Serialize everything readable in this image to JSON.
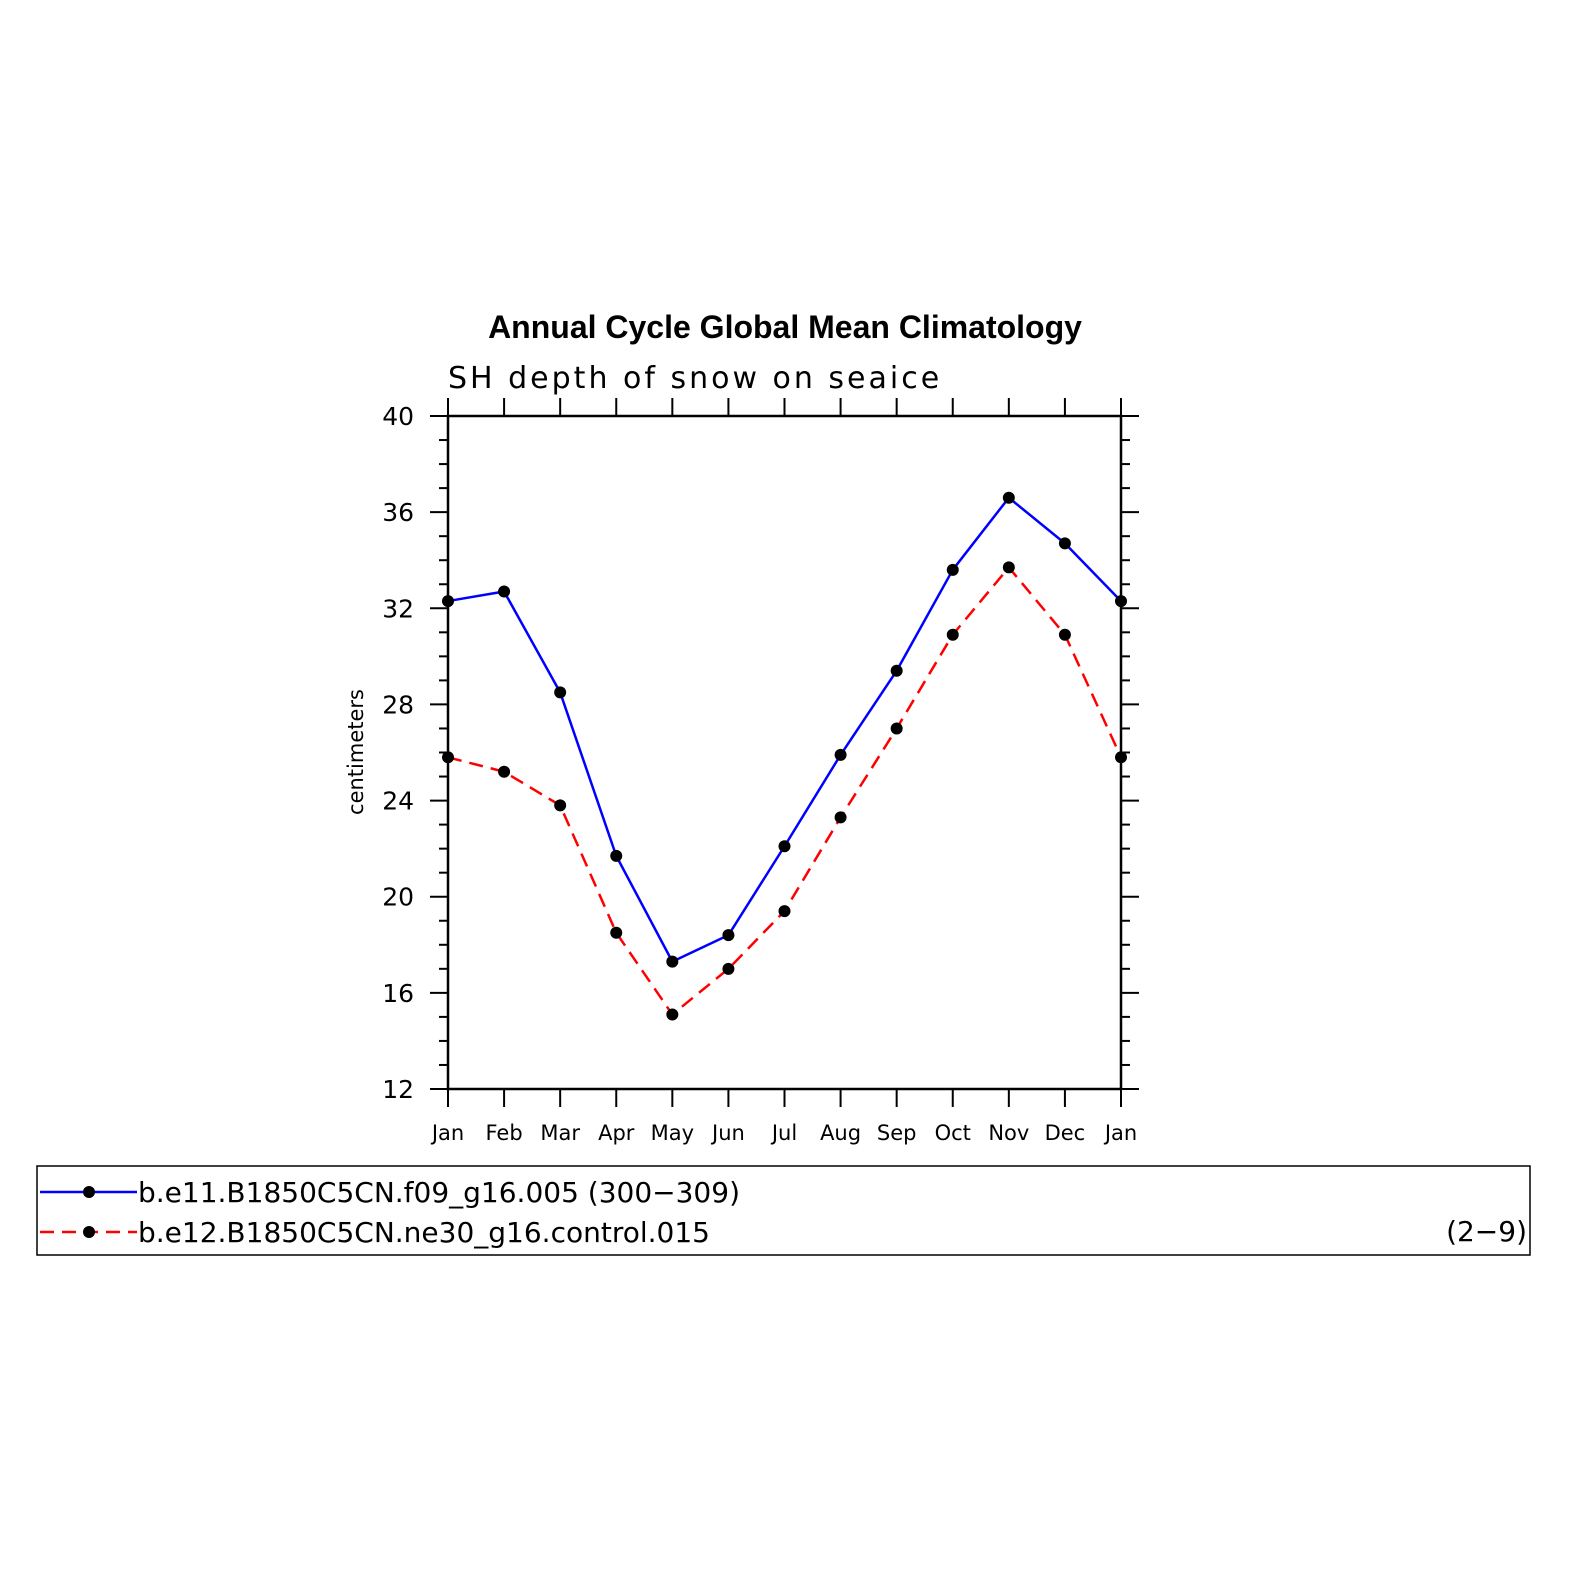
{
  "chart_data": {
    "type": "line",
    "title": "Annual Cycle Global Mean Climatology",
    "subtitle": "SH depth of snow on seaice",
    "ylabel": "centimeters",
    "xlabel": "",
    "categories": [
      "Jan",
      "Feb",
      "Mar",
      "Apr",
      "May",
      "Jun",
      "Jul",
      "Aug",
      "Sep",
      "Oct",
      "Nov",
      "Dec",
      "Jan"
    ],
    "ylim": [
      12,
      40
    ],
    "yticks": [
      12,
      16,
      20,
      24,
      28,
      32,
      36,
      40
    ],
    "series": [
      {
        "name": "b.e11.B1850C5CN.f09_g16.005 (300−309)",
        "color": "#0000ff",
        "dash": "solid",
        "values": [
          32.3,
          32.7,
          28.5,
          21.7,
          17.3,
          18.4,
          22.1,
          25.9,
          29.4,
          33.6,
          36.6,
          34.7,
          32.3
        ]
      },
      {
        "name": "b.e12.B1850C5CN.ne30_g16.control.015",
        "color": "#ff0000",
        "dash": "dashed",
        "values": [
          25.8,
          25.2,
          23.8,
          18.5,
          15.1,
          17.0,
          19.4,
          23.3,
          27.0,
          30.9,
          33.7,
          30.9,
          25.8
        ]
      }
    ],
    "legend": {
      "placement": "bottom",
      "extra_label": "(2−9)"
    }
  }
}
